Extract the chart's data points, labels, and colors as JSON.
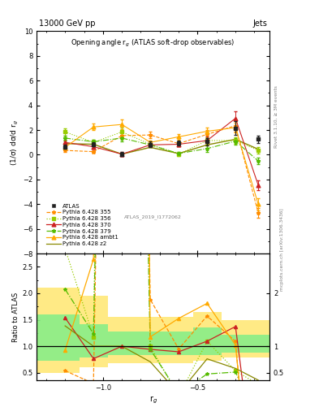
{
  "title_top": "13000 GeV pp",
  "title_right": "Jets",
  "plot_title": "Opening angle r$_g$ (ATLAS soft-drop observables)",
  "xlabel": "r$_g$",
  "ylabel_main": "(1/σ) dσ/d r$_g$",
  "ylabel_ratio": "Ratio to ATLAS",
  "rivet_label": "Rivet 3.1.10, ≥ 3M events",
  "arxiv_label": "mcplots.cern.ch [arXiv:1306.3436]",
  "analysis_label": "ATLAS_2019_I1772062",
  "xlim": [
    -1.35,
    -0.12
  ],
  "ylim_main": [
    -8,
    10
  ],
  "ylim_ratio": [
    0.35,
    2.75
  ],
  "x_ticks_major": [
    -1.0,
    -0.5
  ],
  "x_points": [
    -1.2,
    -1.05,
    -0.9,
    -0.75,
    -0.6,
    -0.45,
    -0.3,
    -0.18
  ],
  "atlas_y": [
    0.65,
    0.85,
    0.05,
    0.85,
    0.95,
    1.05,
    2.15,
    1.25
  ],
  "atlas_yerr": [
    0.15,
    0.15,
    0.15,
    0.2,
    0.2,
    0.3,
    0.55,
    0.3
  ],
  "atlas_color": "#222222",
  "series": [
    {
      "label": "Pythia 6.428 355",
      "color": "#ff8c00",
      "linestyle": "--",
      "marker": "*",
      "y": [
        0.35,
        0.25,
        1.55,
        1.6,
        0.9,
        1.65,
        2.35,
        -4.7
      ],
      "yerr": [
        0.15,
        0.1,
        0.25,
        0.25,
        0.2,
        0.35,
        0.45,
        0.4
      ]
    },
    {
      "label": "Pythia 6.428 356",
      "color": "#99cc00",
      "linestyle": ":",
      "marker": "s",
      "y": [
        1.85,
        1.0,
        1.85,
        0.85,
        0.05,
        1.15,
        1.15,
        0.35
      ],
      "yerr": [
        0.3,
        0.2,
        0.35,
        0.2,
        0.15,
        0.25,
        0.25,
        0.25
      ]
    },
    {
      "label": "Pythia 6.428 370",
      "color": "#cc2222",
      "linestyle": "-",
      "marker": "^",
      "y": [
        1.0,
        0.65,
        0.05,
        0.8,
        0.85,
        1.15,
        2.95,
        -2.45
      ],
      "yerr": [
        0.15,
        0.15,
        0.15,
        0.18,
        0.18,
        0.32,
        0.55,
        0.4
      ]
    },
    {
      "label": "Pythia 6.428 379",
      "color": "#55bb00",
      "linestyle": "-.",
      "marker": "*",
      "y": [
        1.35,
        1.05,
        1.35,
        0.8,
        0.1,
        0.5,
        1.1,
        -0.5
      ],
      "yerr": [
        0.22,
        0.18,
        0.28,
        0.18,
        0.12,
        0.25,
        0.25,
        0.25
      ]
    },
    {
      "label": "Pythia 6.428 ambt1",
      "color": "#ffaa00",
      "linestyle": "-",
      "marker": "^",
      "y": [
        0.6,
        2.25,
        2.45,
        1.0,
        1.45,
        1.9,
        2.2,
        -4.0
      ],
      "yerr": [
        0.18,
        0.28,
        0.38,
        0.18,
        0.22,
        0.32,
        0.42,
        0.5
      ]
    },
    {
      "label": "Pythia 6.428 z2",
      "color": "#888800",
      "linestyle": "-",
      "marker": "None",
      "y": [
        0.9,
        0.85,
        0.05,
        0.6,
        0.1,
        0.8,
        1.25,
        0.45
      ],
      "yerr": [
        0.0,
        0.0,
        0.0,
        0.0,
        0.0,
        0.0,
        0.0,
        0.0
      ]
    }
  ],
  "ratio_bands_yellow": [
    {
      "x": [
        -1.35,
        -1.125
      ],
      "y": [
        0.5,
        2.1
      ]
    },
    {
      "x": [
        -1.125,
        -0.975
      ],
      "y": [
        0.6,
        1.95
      ]
    },
    {
      "x": [
        -0.975,
        -0.525
      ],
      "y": [
        0.68,
        1.55
      ]
    },
    {
      "x": [
        -0.525,
        -0.375
      ],
      "y": [
        0.72,
        1.65
      ]
    },
    {
      "x": [
        -0.375,
        -0.12
      ],
      "y": [
        0.78,
        1.5
      ]
    }
  ],
  "ratio_bands_green": [
    {
      "x": [
        -1.35,
        -1.125
      ],
      "y": [
        0.72,
        1.6
      ]
    },
    {
      "x": [
        -1.125,
        -0.975
      ],
      "y": [
        0.78,
        1.42
      ]
    },
    {
      "x": [
        -0.975,
        -0.525
      ],
      "y": [
        0.84,
        1.28
      ]
    },
    {
      "x": [
        -0.525,
        -0.375
      ],
      "y": [
        0.84,
        1.35
      ]
    },
    {
      "x": [
        -0.375,
        -0.12
      ],
      "y": [
        0.88,
        1.22
      ]
    }
  ],
  "ratio_yticks": [
    0.5,
    1.0,
    1.5,
    2.0,
    2.5
  ],
  "ratio_ylim": [
    0.35,
    2.75
  ]
}
